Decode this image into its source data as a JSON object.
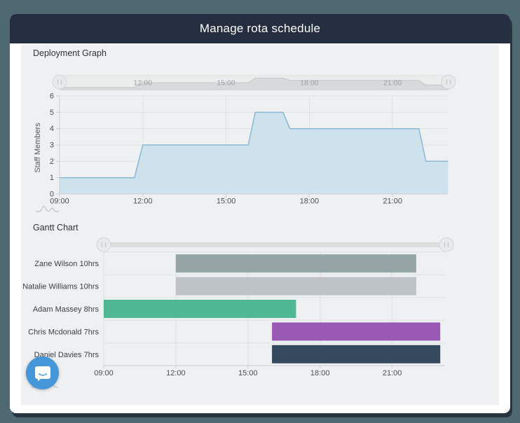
{
  "header": {
    "title": "Manage rota schedule"
  },
  "sections": {
    "deployment_label": "Deployment Graph",
    "gantt_label": "Gantt Chart"
  },
  "icons": {
    "navigator_handles": "drag-handle-icon",
    "sparkline": "area-sparkline-icon",
    "chat": "chat-bubble-icon"
  },
  "colors": {
    "background": "#4e6971",
    "card": "#ffffff",
    "header_bar": "#252e40",
    "panel": "#eef0f1",
    "grid": "#dfe2e4",
    "axis": "#ccced0",
    "tick_text": "#4c5055",
    "nav_bg": "#ebecec",
    "nav_fill": "#d8d9da",
    "nav_stroke": "#c6c8c9",
    "nav_text": "#9aa0a4",
    "area_fill": "#cee2ee",
    "area_stroke": "#8cb8d4",
    "slider_track": "#dcdddd",
    "handle_fill": "#e8e9ea",
    "handle_stroke": "#d4d6d7",
    "chat_blue": "#4697d9"
  },
  "chart_data": [
    {
      "type": "area",
      "title": "Deployment Graph",
      "ylabel": "Staff Members",
      "ylim": [
        0,
        6
      ],
      "yticks": [
        0,
        1,
        2,
        3,
        4,
        5,
        6
      ],
      "xlim_hours": [
        9,
        23
      ],
      "xticks": [
        "09:00",
        "12:00",
        "15:00",
        "18:00",
        "21:00"
      ],
      "xtick_hours": [
        9,
        12,
        15,
        18,
        21
      ],
      "navigator_labels": [
        "12:00",
        "15:00",
        "18:00",
        "21:00"
      ],
      "navigator_label_hours": [
        12,
        15,
        18,
        21
      ],
      "grid": true,
      "legend": false,
      "points_time_value": [
        [
          9,
          1
        ],
        [
          11.7,
          1
        ],
        [
          12,
          3
        ],
        [
          15.8,
          3
        ],
        [
          16.05,
          5
        ],
        [
          17.05,
          5
        ],
        [
          17.3,
          4
        ],
        [
          21.95,
          4
        ],
        [
          22.2,
          2
        ],
        [
          23,
          2
        ]
      ]
    },
    {
      "type": "gantt",
      "title": "Gantt Chart",
      "xticks": [
        "09:00",
        "12:00",
        "15:00",
        "18:00",
        "21:00"
      ],
      "xtick_hours": [
        9,
        12,
        15,
        18,
        21
      ],
      "xlim_hours": [
        9,
        23.2
      ],
      "tasks": [
        {
          "label": "Zane Wilson 10hrs",
          "start_hour": 12,
          "end_hour": 22,
          "color": "#95a5a6"
        },
        {
          "label": "Natalie Williams 10hrs",
          "start_hour": 12,
          "end_hour": 22,
          "color": "#bdc3c7"
        },
        {
          "label": "Adam Massey 8hrs",
          "start_hour": 9,
          "end_hour": 17,
          "color": "#4fb793"
        },
        {
          "label": "Chris Mcdonald 7hrs",
          "start_hour": 16,
          "end_hour": 23,
          "color": "#9b59b6"
        },
        {
          "label": "Daniel Davies 7hrs",
          "start_hour": 16,
          "end_hour": 23,
          "color": "#34495e"
        }
      ]
    }
  ]
}
